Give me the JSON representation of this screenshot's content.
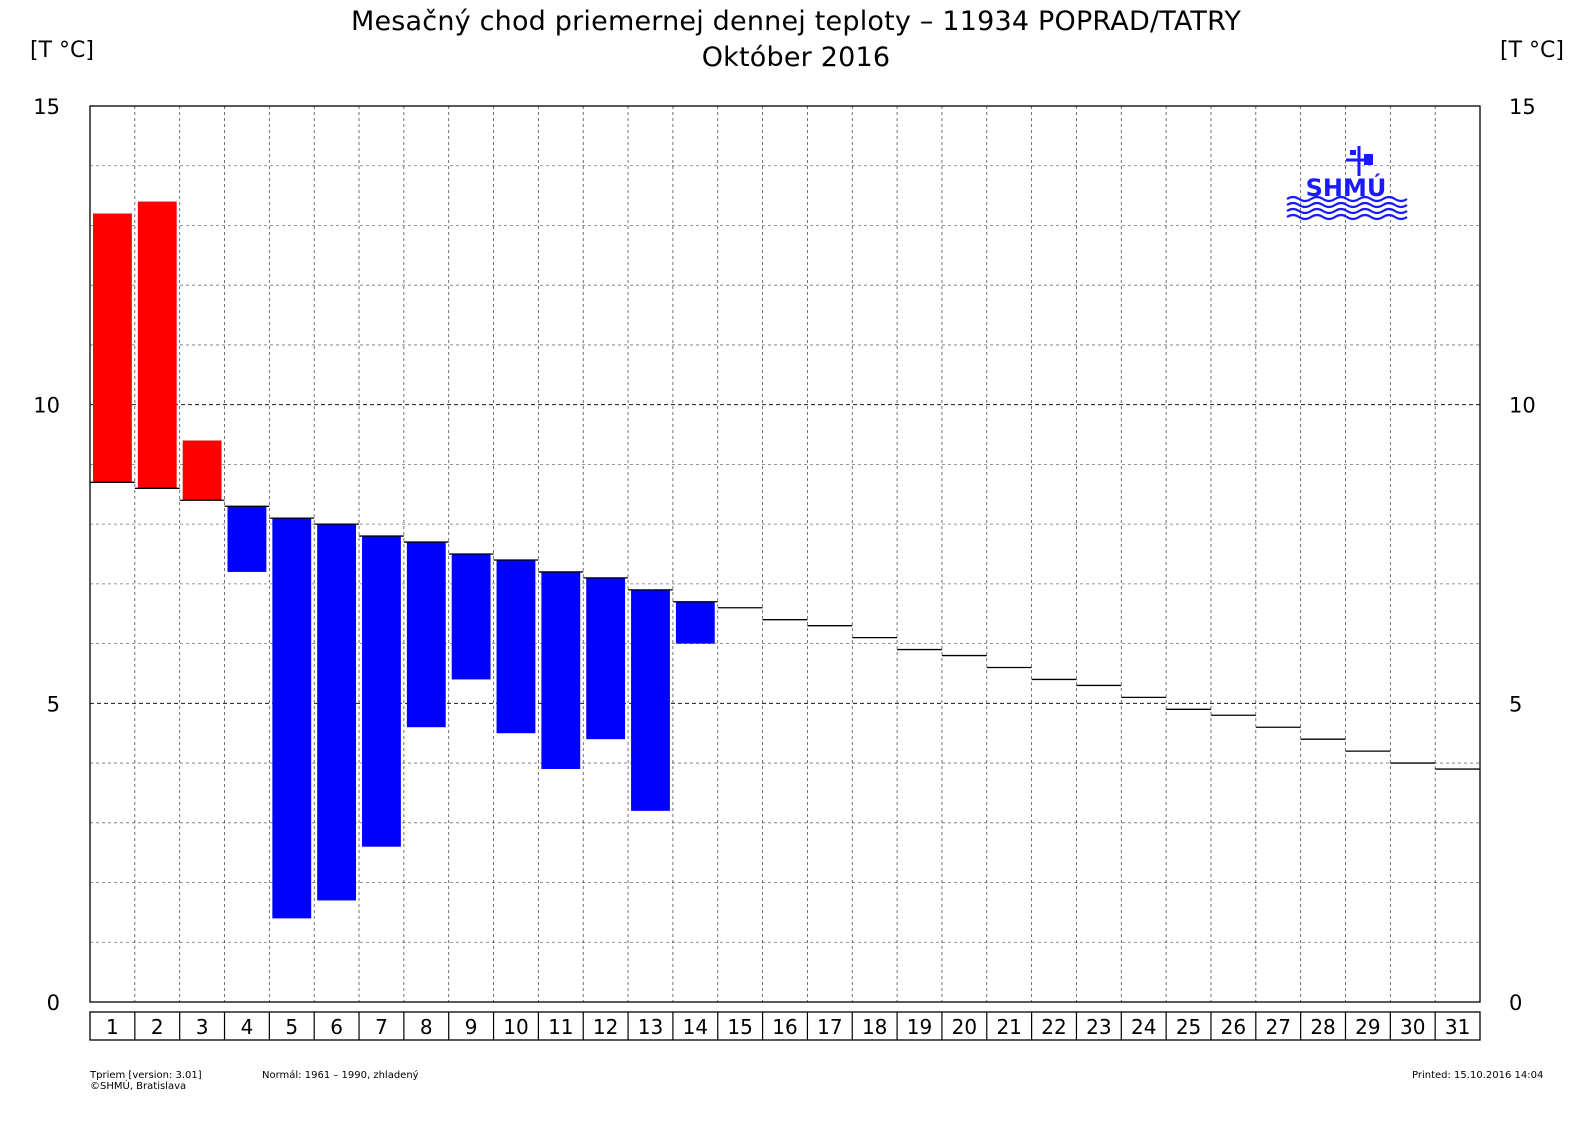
{
  "header": {
    "title_line1": "Mesačný chod priemernej dennej teploty – 11934 POPRAD/TATRY",
    "title_line2": "Október 2016",
    "unit_left": "[T °C]",
    "unit_right": "[T °C]"
  },
  "logo": {
    "text": "SHMÚ",
    "icon": "weather-vane-icon",
    "color": "#1a1aff"
  },
  "footer": {
    "program_line": "Tpriem [version: 3.01]",
    "copyright": "©SHMÚ, Bratislava",
    "normal": "Normál: 1961 – 1990, zhladený",
    "printed": "Printed: 15.10.2016 14:04"
  },
  "colors": {
    "above_normal": "#ff0000",
    "below_normal": "#0000ff",
    "grid": "#000000"
  },
  "chart_data": {
    "type": "bar",
    "ylim": [
      0,
      15
    ],
    "yticks": [
      0,
      5,
      10,
      15
    ],
    "grid": true,
    "categories": [
      "1",
      "2",
      "3",
      "4",
      "5",
      "6",
      "7",
      "8",
      "9",
      "10",
      "11",
      "12",
      "13",
      "14",
      "15",
      "16",
      "17",
      "18",
      "19",
      "20",
      "21",
      "22",
      "23",
      "24",
      "25",
      "26",
      "27",
      "28",
      "29",
      "30",
      "31"
    ],
    "series": [
      {
        "values": [
          13.2,
          13.4,
          9.4,
          7.2,
          1.4,
          1.7,
          2.6,
          4.6,
          5.4,
          4.5,
          3.9,
          4.4,
          3.2,
          6.0,
          null,
          null,
          null,
          null,
          null,
          null,
          null,
          null,
          null,
          null,
          null,
          null,
          null,
          null,
          null,
          null,
          null
        ]
      },
      {
        "values": [
          8.7,
          8.6,
          8.4,
          8.3,
          8.1,
          8.0,
          7.8,
          7.7,
          7.5,
          7.4,
          7.2,
          7.1,
          6.9,
          6.7,
          6.6,
          6.4,
          6.3,
          6.1,
          5.9,
          5.8,
          5.6,
          5.4,
          5.3,
          5.1,
          4.9,
          4.8,
          4.6,
          4.4,
          4.2,
          4.0,
          3.9
        ]
      }
    ]
  }
}
